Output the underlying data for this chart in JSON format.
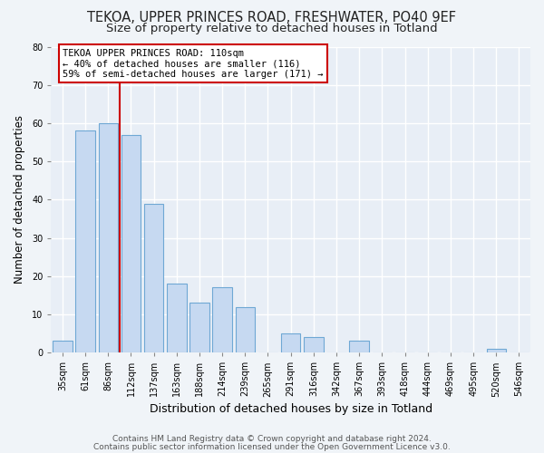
{
  "title1": "TEKOA, UPPER PRINCES ROAD, FRESHWATER, PO40 9EF",
  "title2": "Size of property relative to detached houses in Totland",
  "xlabel": "Distribution of detached houses by size in Totland",
  "ylabel": "Number of detached properties",
  "categories": [
    "35sqm",
    "61sqm",
    "86sqm",
    "112sqm",
    "137sqm",
    "163sqm",
    "188sqm",
    "214sqm",
    "239sqm",
    "265sqm",
    "291sqm",
    "316sqm",
    "342sqm",
    "367sqm",
    "393sqm",
    "418sqm",
    "444sqm",
    "469sqm",
    "495sqm",
    "520sqm",
    "546sqm"
  ],
  "values": [
    3,
    58,
    60,
    57,
    39,
    18,
    13,
    17,
    12,
    0,
    5,
    4,
    0,
    3,
    0,
    0,
    0,
    0,
    0,
    1,
    0
  ],
  "bar_color": "#c6d9f1",
  "bar_edge_color": "#6fa8d4",
  "vline_color": "#cc0000",
  "vline_x": 2.5,
  "annotation_lines": [
    "TEKOA UPPER PRINCES ROAD: 110sqm",
    "← 40% of detached houses are smaller (116)",
    "59% of semi-detached houses are larger (171) →"
  ],
  "ylim": [
    0,
    80
  ],
  "yticks": [
    0,
    10,
    20,
    30,
    40,
    50,
    60,
    70,
    80
  ],
  "footer1": "Contains HM Land Registry data © Crown copyright and database right 2024.",
  "footer2": "Contains public sector information licensed under the Open Government Licence v3.0.",
  "bg_color": "#f0f4f8",
  "plot_bg_color": "#e8eef6",
  "grid_color": "#ffffff",
  "title_fontsize": 10.5,
  "subtitle_fontsize": 9.5,
  "tick_fontsize": 7,
  "footer_fontsize": 6.5,
  "ylabel_fontsize": 8.5,
  "xlabel_fontsize": 9
}
